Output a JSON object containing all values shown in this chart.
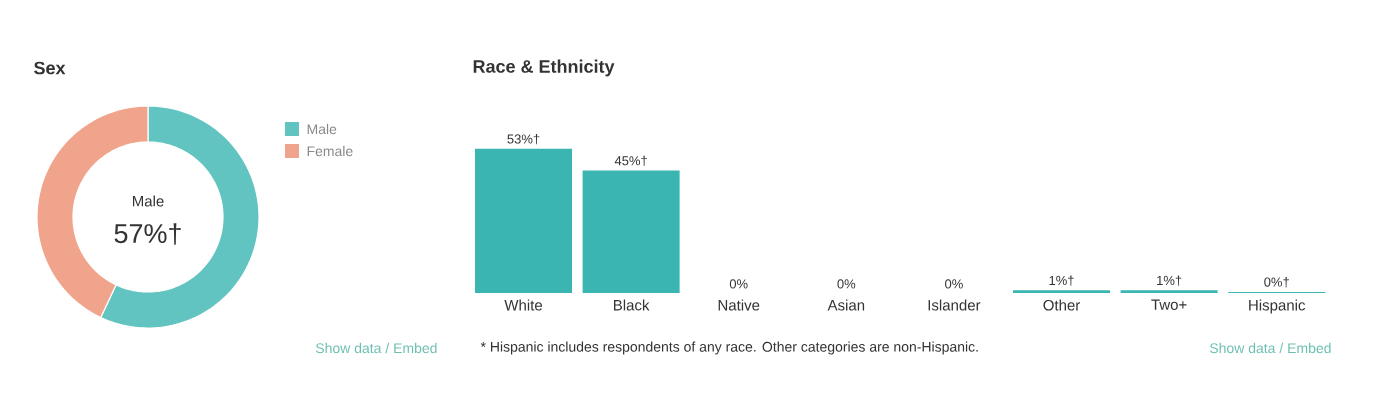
{
  "chart_data": [
    {
      "type": "donut",
      "title": "Sex",
      "categories": [
        "Male",
        "Female"
      ],
      "values": [
        57,
        43
      ],
      "colors": [
        "#62c4c0",
        "#f0a48b"
      ],
      "legend": "right",
      "annotations": [
        "Male",
        "57%†",
        "Show data / Embed"
      ]
    },
    {
      "type": "bar",
      "title": "Race & Ethnicity",
      "categories": [
        "White",
        "Black",
        "Native",
        "Asian",
        "Islander",
        "Other",
        "Two+",
        "Hispanic"
      ],
      "values": [
        53,
        45,
        0,
        0,
        0,
        1,
        1,
        0.4
      ],
      "color": "#3ab5b1",
      "value_labels": [
        "53%†",
        "45%†",
        "0%",
        "0%",
        "0%",
        "1%†",
        "1%†",
        "0%†"
      ],
      "annotations": [
        "* Hispanic includes respondents of any race. Other categories are non-Hispanic.",
        "Show data / Embed"
      ]
    }
  ]
}
